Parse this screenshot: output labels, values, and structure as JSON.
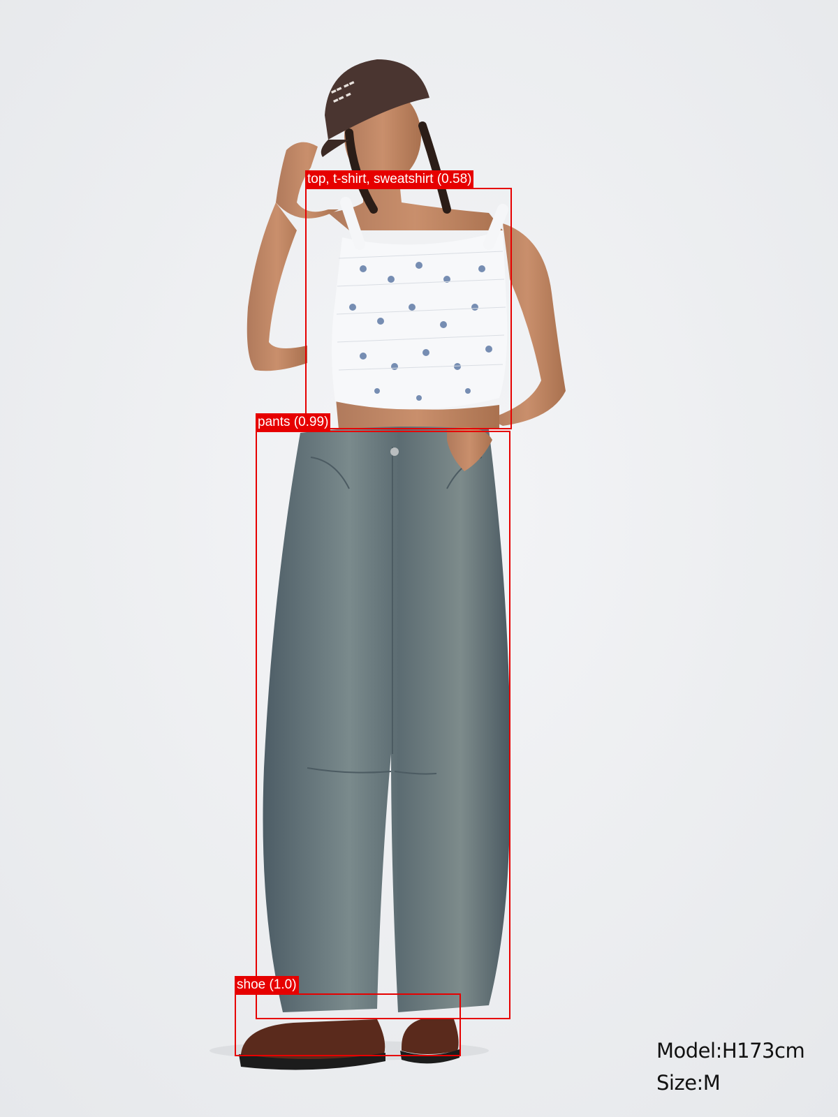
{
  "detections": [
    {
      "label": "top, t-shirt, sweatshirt (0.58)"
    },
    {
      "label": "pants (0.99)"
    },
    {
      "label": "shoe (1.0)"
    }
  ],
  "model_info": {
    "height": "Model:H173cm",
    "size": "Size:M"
  },
  "colors": {
    "box": "#e60000",
    "background": "#eef0f2",
    "denim": "#5f7078",
    "cap": "#4a3530",
    "shoe": "#5a2a1c"
  }
}
